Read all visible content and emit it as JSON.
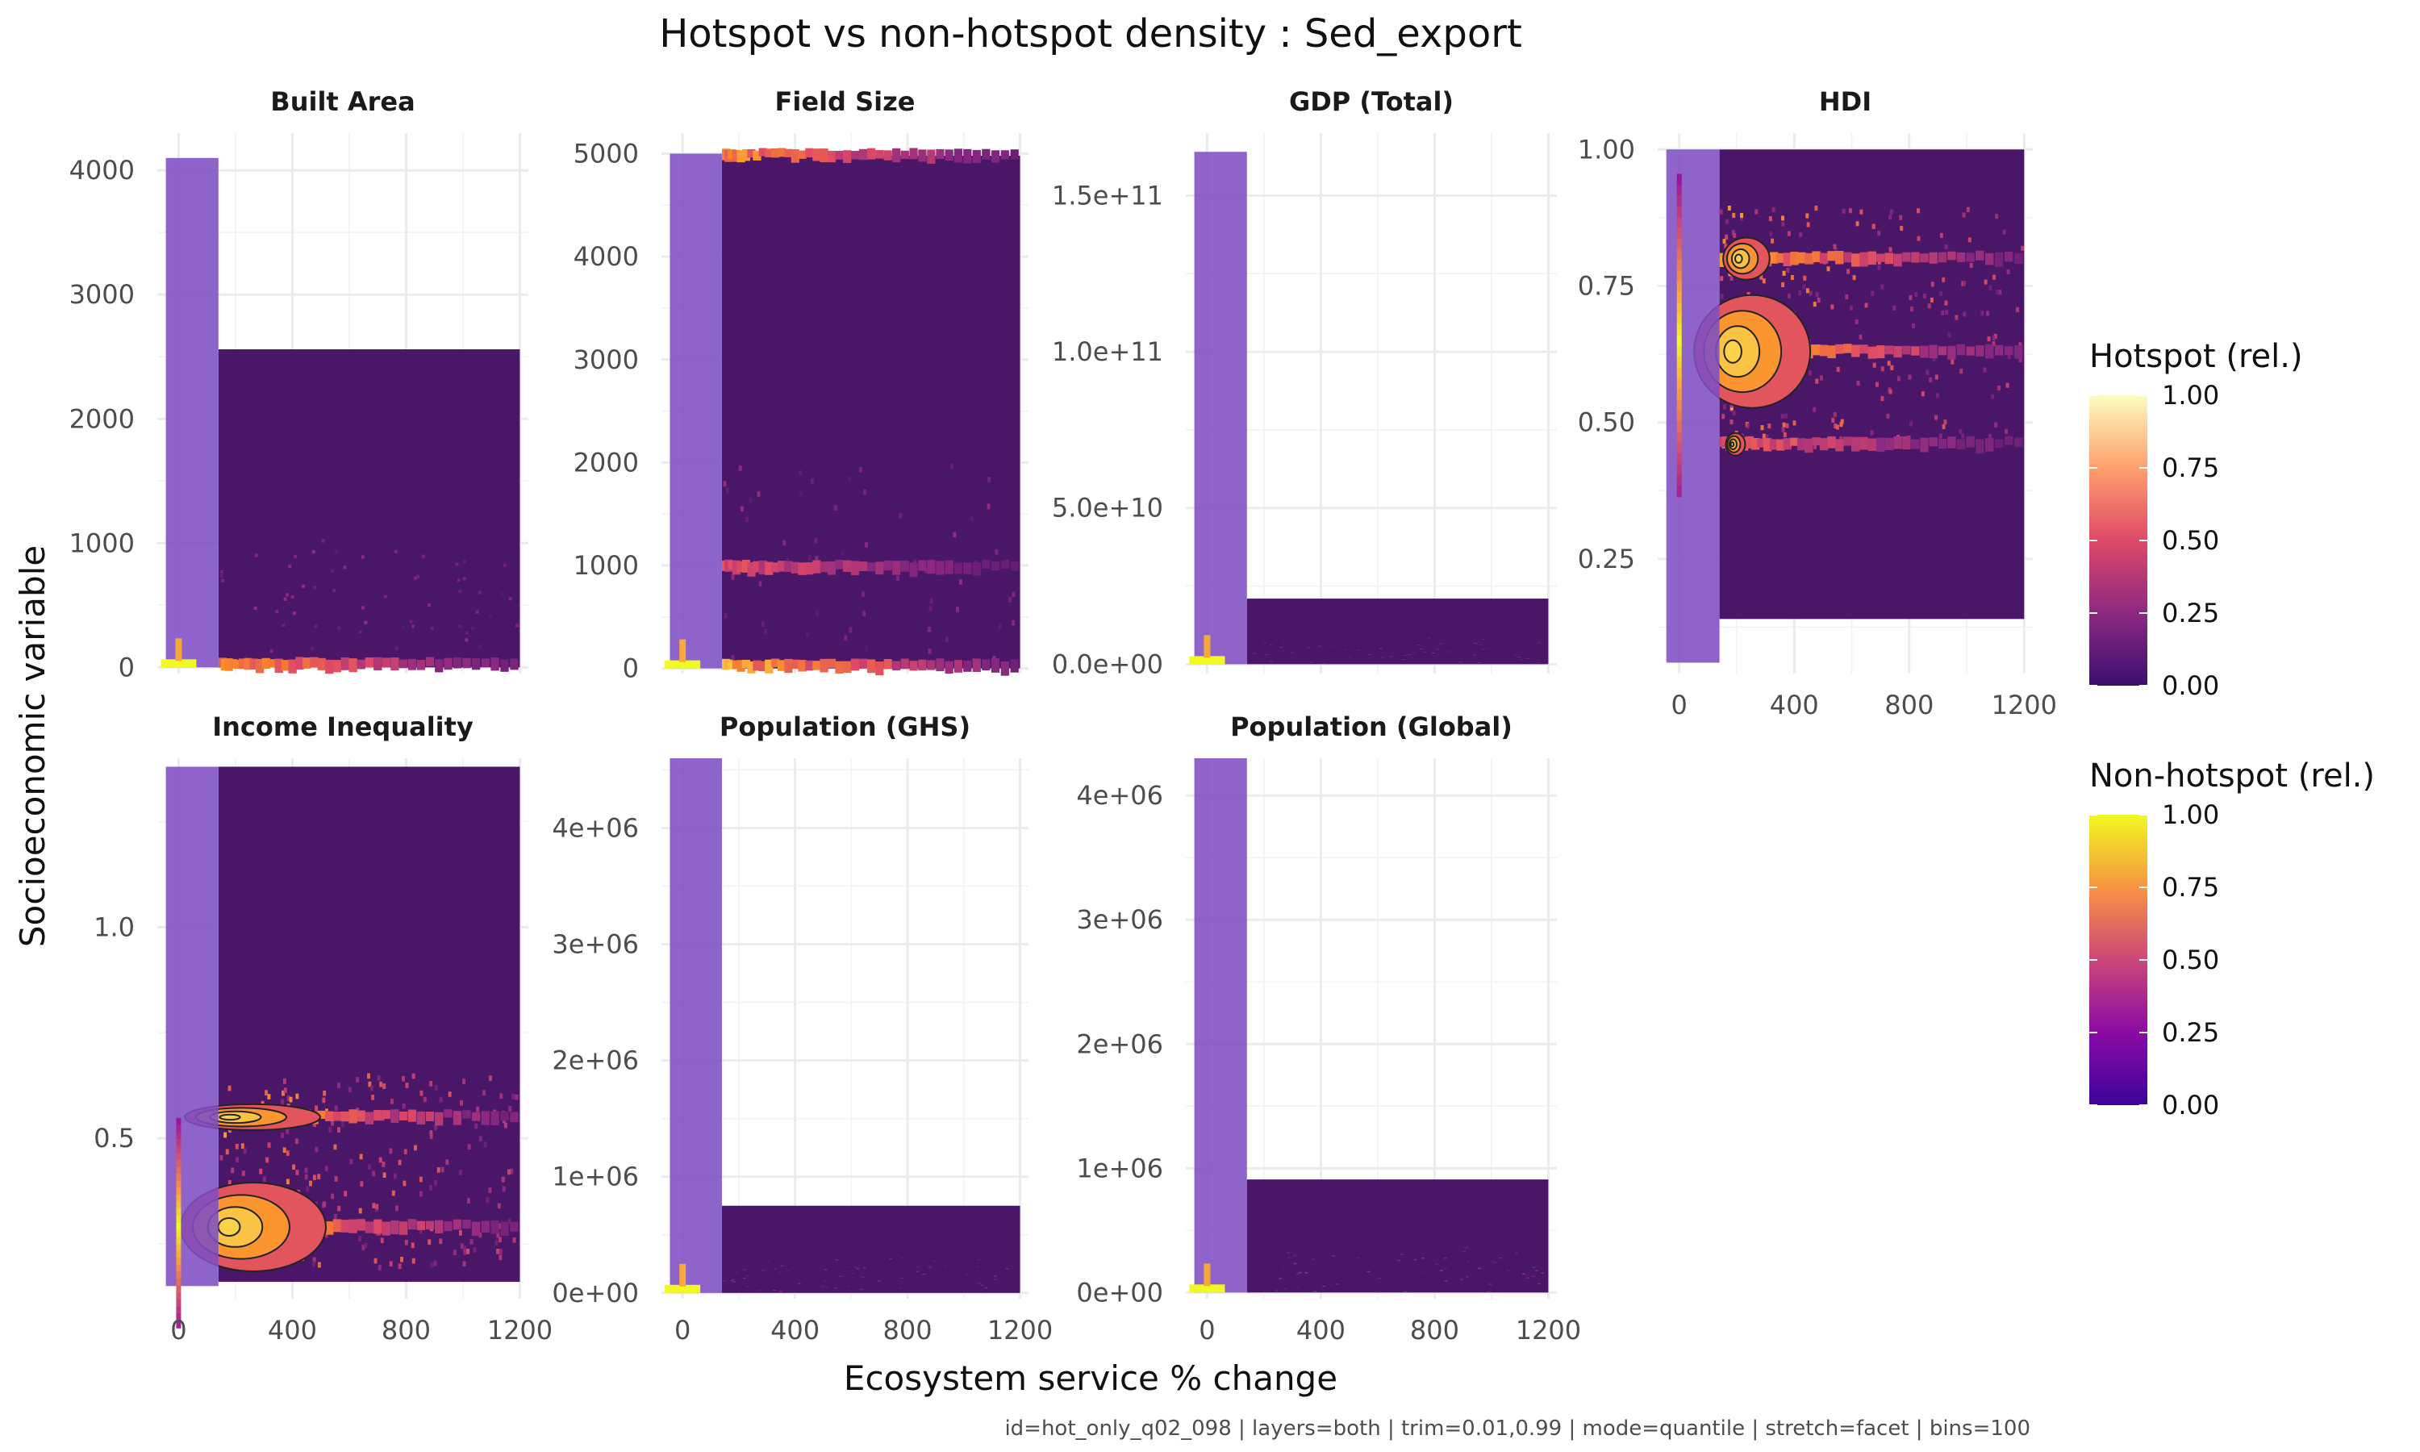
{
  "chart_data": {
    "type": "heatmap",
    "title": "Hotspot vs non-hotspot density : Sed_export",
    "xlabel": "Ecosystem service % change",
    "ylabel": "Socioeconomic variable",
    "caption": "id=hot_only_q02_098 | layers=both | trim=0.01,0.99 | mode=quantile | stretch=facet | bins=100",
    "x_ticks": [
      "0",
      "400",
      "800",
      "1200"
    ],
    "x_tick_values": [
      0,
      400,
      800,
      1200
    ],
    "xlim": [
      -75,
      1230
    ],
    "legends": [
      {
        "title": "Hotspot (rel.)",
        "palette": "inferno",
        "ticks": [
          "0.00",
          "0.25",
          "0.50",
          "0.75",
          "1.00"
        ],
        "colors": [
          "#3b0f70",
          "#8c2981",
          "#de4968",
          "#fe9f6d",
          "#fcfdbf"
        ]
      },
      {
        "title": "Non-hotspot (rel.)",
        "palette": "plasma",
        "ticks": [
          "0.00",
          "0.25",
          "0.50",
          "0.75",
          "1.00"
        ],
        "colors": [
          "#3b049a",
          "#8b0aa5",
          "#cc4778",
          "#f89441",
          "#f0f921"
        ]
      }
    ],
    "facets": [
      {
        "name": "Built Area",
        "ylim": [
          -50,
          4300
        ],
        "y_ticks": [
          "0",
          "1000",
          "2000",
          "3000",
          "4000"
        ],
        "y_tick_values": [
          0,
          1000,
          2000,
          3000,
          4000
        ],
        "nonhotspot_band": {
          "x": [
            -45,
            140
          ],
          "y": [
            0,
            4100
          ]
        },
        "hotspot_extent": {
          "x": [
            140,
            1200
          ],
          "y": [
            0,
            2560
          ]
        },
        "highlights": [
          {
            "layer": "non-hotspot",
            "x": 0,
            "y": 100,
            "intensity": 1.0
          },
          {
            "layer": "hotspot",
            "x": 200,
            "y": 20,
            "intensity": 0.85
          }
        ]
      },
      {
        "name": "Field Size",
        "ylim": [
          -50,
          5200
        ],
        "y_ticks": [
          "0",
          "1000",
          "2000",
          "3000",
          "4000",
          "5000"
        ],
        "y_tick_values": [
          0,
          1000,
          2000,
          3000,
          4000,
          5000
        ],
        "nonhotspot_band": {
          "x": [
            -45,
            140
          ],
          "y": [
            0,
            5000
          ]
        },
        "hotspot_extent": {
          "x": [
            140,
            1200
          ],
          "y": [
            0,
            4980
          ]
        },
        "highlights": [
          {
            "layer": "hotspot",
            "x": 200,
            "y": 20,
            "intensity": 1.0
          },
          {
            "layer": "hotspot",
            "x": 200,
            "y": 980,
            "intensity": 0.6
          },
          {
            "layer": "hotspot",
            "x": 200,
            "y": 4980,
            "intensity": 0.9
          }
        ]
      },
      {
        "name": "GDP (Total)",
        "ylim": [
          -3000000000.0,
          170000000000.0
        ],
        "y_ticks": [
          "0.0e+00",
          "5.0e+10",
          "1.0e+11",
          "1.5e+11"
        ],
        "y_tick_values": [
          0,
          50000000000.0,
          100000000000.0,
          150000000000.0
        ],
        "nonhotspot_band": {
          "x": [
            -45,
            140
          ],
          "y": [
            0,
            164000000000.0
          ]
        },
        "hotspot_extent": {
          "x": [
            140,
            1200
          ],
          "y": [
            0,
            21000000000.0
          ]
        },
        "highlights": [
          {
            "layer": "non-hotspot",
            "x": 0,
            "y": 500000000.0,
            "intensity": 1.0
          }
        ]
      },
      {
        "name": "HDI",
        "ylim": [
          0.04,
          1.03
        ],
        "y_ticks": [
          "0.25",
          "0.50",
          "0.75",
          "1.00"
        ],
        "y_tick_values": [
          0.25,
          0.5,
          0.75,
          1.0
        ],
        "nonhotspot_band": {
          "x": [
            -45,
            140
          ],
          "y": [
            0.06,
            1.0
          ]
        },
        "hotspot_extent": {
          "x": [
            140,
            1200
          ],
          "y": [
            0.14,
            1.0
          ]
        },
        "highlights": [
          {
            "layer": "hotspot",
            "x": 220,
            "y": 0.8,
            "intensity": 0.95
          },
          {
            "layer": "hotspot",
            "x": 220,
            "y": 0.63,
            "intensity": 1.0
          },
          {
            "layer": "hotspot",
            "x": 190,
            "y": 0.46,
            "intensity": 0.7
          }
        ]
      },
      {
        "name": "Income Inequality",
        "ylim": [
          0.12,
          1.4
        ],
        "y_ticks": [
          "0.5",
          "1.0"
        ],
        "y_tick_values": [
          0.5,
          1.0
        ],
        "nonhotspot_band": {
          "x": [
            -45,
            140
          ],
          "y": [
            0.15,
            1.38
          ]
        },
        "hotspot_extent": {
          "x": [
            140,
            1200
          ],
          "y": [
            0.16,
            1.38
          ]
        },
        "highlights": [
          {
            "layer": "hotspot",
            "x": 220,
            "y": 0.55,
            "intensity": 1.0
          },
          {
            "layer": "hotspot",
            "x": 220,
            "y": 0.29,
            "intensity": 1.0
          }
        ]
      },
      {
        "name": "Population (GHS)",
        "ylim": [
          -50000.0,
          4600000.0
        ],
        "y_ticks": [
          "0e+00",
          "1e+06",
          "2e+06",
          "3e+06",
          "4e+06"
        ],
        "y_tick_values": [
          0,
          1000000.0,
          2000000.0,
          3000000.0,
          4000000.0
        ],
        "nonhotspot_band": {
          "x": [
            -45,
            140
          ],
          "y": [
            0,
            4600000.0
          ]
        },
        "hotspot_extent": {
          "x": [
            140,
            1200
          ],
          "y": [
            0,
            750000.0
          ]
        },
        "highlights": [
          {
            "layer": "non-hotspot",
            "x": 0,
            "y": 30000.0,
            "intensity": 1.0
          }
        ]
      },
      {
        "name": "Population (Global)",
        "ylim": [
          -50000.0,
          4300000.0
        ],
        "y_ticks": [
          "0e+00",
          "1e+06",
          "2e+06",
          "3e+06",
          "4e+06"
        ],
        "y_tick_values": [
          0,
          1000000.0,
          2000000.0,
          3000000.0,
          4000000.0
        ],
        "nonhotspot_band": {
          "x": [
            -45,
            140
          ],
          "y": [
            0,
            4300000.0
          ]
        },
        "hotspot_extent": {
          "x": [
            140,
            1200
          ],
          "y": [
            0,
            910000.0
          ]
        },
        "highlights": [
          {
            "layer": "non-hotspot",
            "x": 0,
            "y": 30000.0,
            "intensity": 1.0
          }
        ]
      }
    ]
  }
}
